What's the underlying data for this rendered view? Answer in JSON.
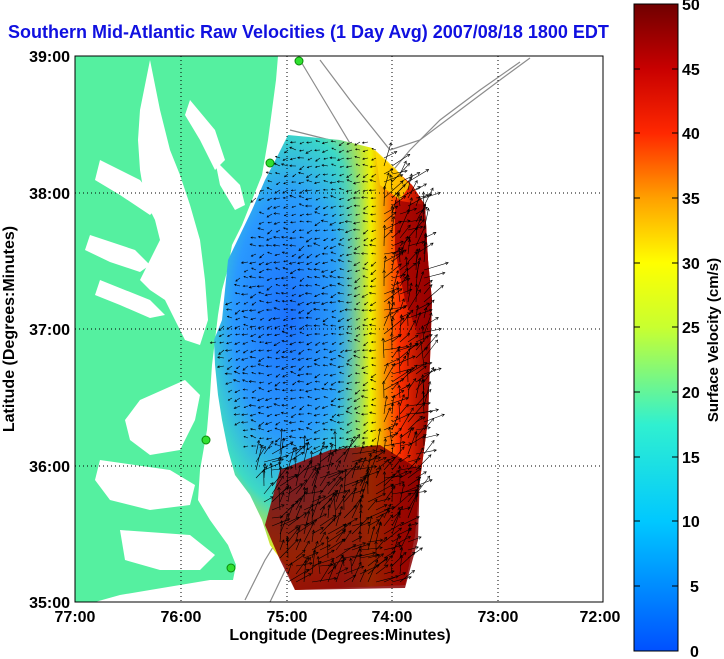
{
  "title": "Southern Mid-Atlantic Raw Velocities (1 Day Avg) 2007/08/18 1800 EDT",
  "map": {
    "xlabel": "Longitude (Degrees:Minutes)",
    "ylabel": "Latitude (Degrees:Minutes)",
    "x_ticks": [
      "77:00",
      "76:00",
      "75:00",
      "74:00",
      "73:00",
      "72:00"
    ],
    "y_ticks": [
      "39:00",
      "38:00",
      "37:00",
      "36:00",
      "35:00"
    ],
    "grid": "dotted"
  },
  "colorbar": {
    "label": "Surface Velocity (cm/s)",
    "ticks": [
      "50",
      "45",
      "40",
      "35",
      "30",
      "25",
      "20",
      "15",
      "10",
      "5",
      "0"
    ],
    "range": [
      0,
      50
    ]
  },
  "colors": {
    "land": "#55f0a0",
    "title": "#1010e0",
    "low": "#1a6aff",
    "high": "#7a0000"
  }
}
